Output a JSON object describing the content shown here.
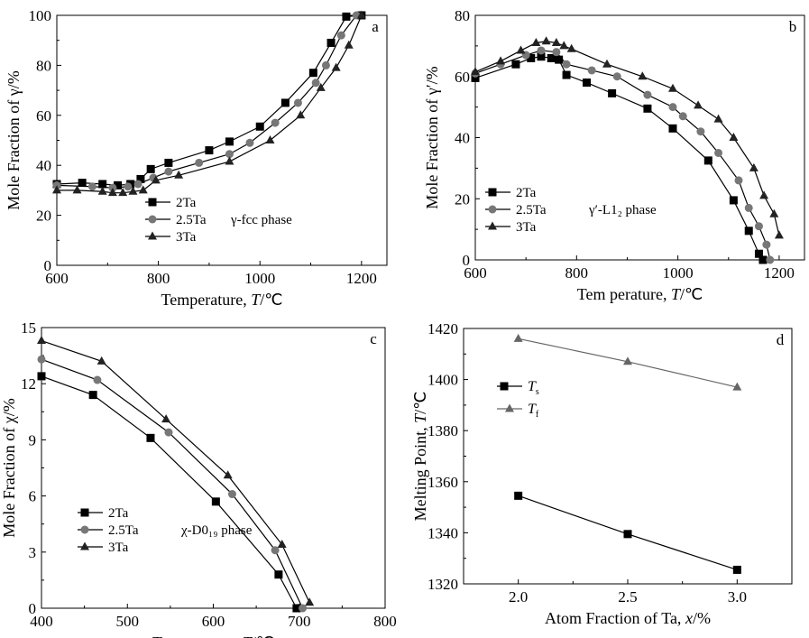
{
  "chart_data": [
    {
      "type": "line",
      "panel_letter": "a",
      "xlabel": "Temperature, ",
      "xlabel_sym": "T",
      "xlabel_unit": "/℃",
      "ylabel": "Mole Fraction of γ/%",
      "xlim": [
        600,
        1250
      ],
      "ylim": [
        0,
        100
      ],
      "xticks": [
        600,
        800,
        1000,
        1200
      ],
      "yticks": [
        0,
        20,
        40,
        60,
        80,
        100
      ],
      "legend_note": "γ-fcc phase",
      "legend": "bottom-left",
      "series": [
        {
          "name": "2Ta",
          "marker": "square",
          "x": [
            600,
            650,
            690,
            720,
            745,
            765,
            785,
            820,
            900,
            940,
            1000,
            1050,
            1105,
            1140,
            1170,
            1200
          ],
          "y": [
            32.5,
            33,
            32.5,
            32,
            32.5,
            34.5,
            38.5,
            41,
            46,
            49.5,
            55.5,
            65,
            77,
            89,
            99.5,
            100
          ]
        },
        {
          "name": "2.5Ta",
          "marker": "circle",
          "x": [
            600,
            670,
            710,
            740,
            760,
            790,
            820,
            880,
            940,
            980,
            1030,
            1075,
            1110,
            1130,
            1160,
            1190
          ],
          "y": [
            32,
            31.5,
            31,
            31.5,
            32.5,
            35,
            37.5,
            41,
            44.5,
            49,
            57,
            65,
            73,
            80,
            92,
            100
          ]
        },
        {
          "name": "3Ta",
          "marker": "triangle",
          "x": [
            600,
            640,
            690,
            710,
            730,
            750,
            770,
            795,
            840,
            940,
            1020,
            1080,
            1120,
            1150,
            1175,
            1200
          ],
          "y": [
            30,
            30,
            29.5,
            29,
            29,
            29.5,
            30,
            34,
            36,
            41.5,
            50,
            60,
            71,
            79,
            88,
            100
          ]
        }
      ]
    },
    {
      "type": "line",
      "panel_letter": "b",
      "xlabel": "Tem perature, ",
      "xlabel_sym": "T",
      "xlabel_unit": "/℃",
      "ylabel": "Mole Fraction of γ′/%",
      "xlim": [
        600,
        1250
      ],
      "ylim": [
        0,
        80
      ],
      "xticks": [
        600,
        800,
        1000,
        1200
      ],
      "yticks": [
        0,
        20,
        40,
        60,
        80
      ],
      "legend_note": "γ′-L1₂ phase",
      "legend": "bottom-left",
      "series": [
        {
          "name": "2Ta",
          "marker": "square",
          "x": [
            600,
            680,
            710,
            730,
            750,
            765,
            780,
            820,
            870,
            940,
            990,
            1060,
            1110,
            1140,
            1160,
            1168
          ],
          "y": [
            59.5,
            64,
            66,
            66.5,
            66,
            65.5,
            60.5,
            58,
            54.5,
            49.5,
            43,
            32.5,
            19.5,
            9.5,
            2,
            0
          ]
        },
        {
          "name": "2.5Ta",
          "marker": "circle",
          "x": [
            600,
            650,
            700,
            730,
            760,
            780,
            830,
            880,
            940,
            990,
            1010,
            1045,
            1080,
            1120,
            1140,
            1160,
            1175,
            1182
          ],
          "y": [
            61,
            64,
            67,
            68.5,
            68,
            64,
            62,
            60,
            54,
            50,
            47,
            42,
            35,
            26,
            17,
            11,
            5,
            0
          ]
        },
        {
          "name": "3Ta",
          "marker": "triangle",
          "x": [
            600,
            650,
            690,
            720,
            740,
            760,
            775,
            790,
            860,
            930,
            990,
            1040,
            1080,
            1110,
            1150,
            1170,
            1190,
            1200
          ],
          "y": [
            61.5,
            65,
            68.5,
            71,
            71.5,
            71,
            70,
            69,
            64,
            60,
            56,
            50.5,
            46,
            40,
            30,
            21,
            15,
            8
          ]
        }
      ]
    },
    {
      "type": "line",
      "panel_letter": "c",
      "xlabel": "Temperature, ",
      "xlabel_sym": "T",
      "xlabel_unit": "/℃",
      "ylabel": "Mole Fraction of χ/%",
      "xlim": [
        400,
        800
      ],
      "ylim": [
        0,
        15
      ],
      "xticks": [
        400,
        500,
        600,
        700,
        800
      ],
      "yticks": [
        0,
        3,
        6,
        9,
        12,
        15
      ],
      "legend_note": "χ-D0₁₉ phase",
      "legend": "bottom-left",
      "series": [
        {
          "name": "2Ta",
          "marker": "square",
          "x": [
            400,
            460,
            527,
            603,
            676,
            697
          ],
          "y": [
            12.4,
            11.4,
            9.1,
            5.7,
            1.8,
            0
          ]
        },
        {
          "name": "2.5Ta",
          "marker": "circle",
          "x": [
            400,
            465,
            548,
            622,
            672,
            704
          ],
          "y": [
            13.3,
            12.2,
            9.4,
            6.1,
            3.1,
            0
          ]
        },
        {
          "name": "3Ta",
          "marker": "triangle",
          "x": [
            400,
            470,
            545,
            617,
            680,
            712
          ],
          "y": [
            14.3,
            13.2,
            10.1,
            7.1,
            3.4,
            0.3
          ]
        }
      ]
    },
    {
      "type": "line",
      "panel_letter": "d",
      "xlabel": "Atom Fraction of Ta, ",
      "xlabel_sym": "x",
      "xlabel_unit": "/%",
      "ylabel": "Melting Point, ",
      "ylabel_sym": "T",
      "ylabel_unit": "/℃",
      "xlim": [
        1.75,
        3.25
      ],
      "ylim": [
        1320,
        1420
      ],
      "xticks": [
        2.0,
        2.5,
        3.0
      ],
      "yticks": [
        1320,
        1340,
        1360,
        1380,
        1400,
        1420
      ],
      "legend": "upper-left",
      "series": [
        {
          "name": "T",
          "name_sub": "s",
          "marker": "square",
          "color": "#000000",
          "x": [
            2.0,
            2.5,
            3.0
          ],
          "y": [
            1354.5,
            1339.5,
            1325.5
          ]
        },
        {
          "name": "T",
          "name_sub": "f",
          "marker": "triangle",
          "color": "#666666",
          "x": [
            2.0,
            2.5,
            3.0
          ],
          "y": [
            1416,
            1407,
            1397
          ]
        }
      ]
    }
  ]
}
